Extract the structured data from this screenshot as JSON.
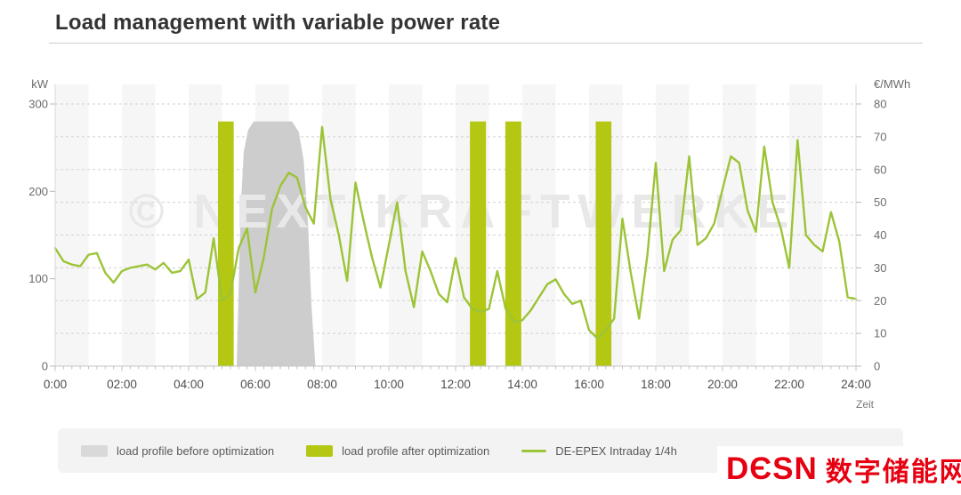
{
  "title": "Load management with variable power rate",
  "chart_data": {
    "type": "combo",
    "x_axis": {
      "label": "Zeit",
      "unit": "hour",
      "range": [
        0,
        24
      ],
      "tick_labels": [
        "0:00",
        "02:00",
        "04:00",
        "06:00",
        "08:00",
        "10:00",
        "12:00",
        "14:00",
        "16:00",
        "18:00",
        "20:00",
        "22:00",
        "24:00"
      ],
      "minor_tick_interval_hours": 0.25
    },
    "left_axis": {
      "label": "kW",
      "min": 0,
      "max": 300,
      "ticks": [
        300,
        200,
        100,
        0
      ]
    },
    "right_axis": {
      "label": "€/MWh",
      "min": 0,
      "max": 80,
      "ticks": [
        80,
        70,
        60,
        50,
        40,
        30,
        20,
        10,
        0
      ]
    },
    "grid": "horizontal-dashed",
    "background_bands": "alternating-hourly",
    "watermark": "© NEXT KRAFTWERKE",
    "series": [
      {
        "name": "load profile before optimization",
        "type": "area",
        "axis": "left",
        "color": "#cdcdcd",
        "points_h_kw": [
          [
            5.44,
            0
          ],
          [
            5.5,
            90
          ],
          [
            5.56,
            180
          ],
          [
            5.65,
            245
          ],
          [
            5.78,
            270
          ],
          [
            5.95,
            280
          ],
          [
            7.1,
            280
          ],
          [
            7.3,
            268
          ],
          [
            7.45,
            235
          ],
          [
            7.58,
            160
          ],
          [
            7.68,
            70
          ],
          [
            7.8,
            0
          ]
        ]
      },
      {
        "name": "load profile after optimization",
        "type": "bar",
        "axis": "left",
        "color": "#b4c712",
        "bar_height_kw": 280,
        "bars_h": [
          [
            4.88,
            5.35
          ],
          [
            12.43,
            12.91
          ],
          [
            13.49,
            13.97
          ],
          [
            16.2,
            16.67
          ]
        ]
      },
      {
        "name": "DE-EPEX Intraday 1/4h",
        "type": "line",
        "axis": "right",
        "color": "#9cc437",
        "start_hour": 0,
        "step_hours": 0.25,
        "values_eur_mwh": [
          36,
          32,
          31,
          30.5,
          34,
          34.5,
          28.5,
          25.5,
          29,
          30,
          30.5,
          31,
          29.5,
          31.5,
          28.5,
          29,
          32.5,
          20.5,
          22.5,
          39,
          20,
          22,
          36,
          42,
          22.5,
          33,
          48,
          55,
          59,
          57.5,
          48.5,
          43.5,
          73,
          51,
          40,
          26,
          56,
          44,
          33,
          24,
          37,
          50,
          29,
          18,
          35,
          29,
          22,
          19.5,
          33,
          21,
          17.5,
          16.5,
          17.5,
          29,
          17.5,
          13.5,
          14,
          17,
          21,
          25,
          26.5,
          22,
          19,
          20,
          11,
          8.5,
          11,
          14.5,
          45,
          28.5,
          14.5,
          34,
          62,
          29,
          38.5,
          41.5,
          64,
          37,
          39,
          43.5,
          54,
          64,
          62,
          47.5,
          41,
          67,
          50,
          42,
          30,
          69,
          40,
          37,
          35,
          47,
          38,
          21,
          20.5
        ]
      }
    ]
  },
  "logo": {
    "latin": "DЄSN",
    "chinese": "数字储能网",
    "color": "#e60012"
  }
}
